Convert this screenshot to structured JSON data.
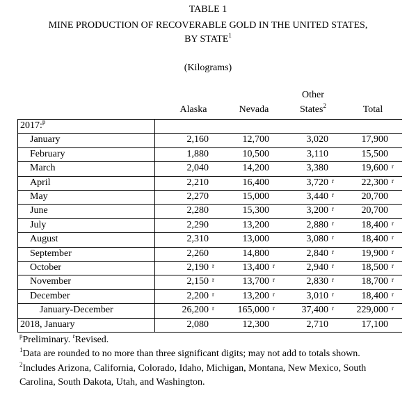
{
  "title": "TABLE 1",
  "subtitle": {
    "text": "MINE PRODUCTION OF RECOVERABLE GOLD IN THE UNITED STATES,",
    "line2": "BY STATE",
    "note": "1"
  },
  "units": "(Kilograms)",
  "table": {
    "columns": [
      {
        "text": "Alaska"
      },
      {
        "text": "Nevada"
      },
      {
        "top": "Other",
        "text": "States",
        "note": "2"
      },
      {
        "text": "Total"
      }
    ],
    "rows": [
      {
        "label": "2017:",
        "note": "p",
        "cells": []
      },
      {
        "label": "January",
        "cells": [
          {
            "text": "2,160"
          },
          {
            "text": "12,700"
          },
          {
            "text": "3,020"
          },
          {
            "text": "17,900"
          }
        ]
      },
      {
        "label": "February",
        "cells": [
          {
            "text": "1,880"
          },
          {
            "text": "10,500"
          },
          {
            "text": "3,110"
          },
          {
            "text": "15,500"
          }
        ]
      },
      {
        "label": "March",
        "cells": [
          {
            "text": "2,040"
          },
          {
            "text": "14,200"
          },
          {
            "text": "3,380"
          },
          {
            "text": "19,600",
            "note": "r"
          }
        ]
      },
      {
        "label": "April",
        "cells": [
          {
            "text": "2,210"
          },
          {
            "text": "16,400"
          },
          {
            "text": "3,720",
            "note": "r"
          },
          {
            "text": "22,300",
            "note": "r"
          }
        ]
      },
      {
        "label": "May",
        "cells": [
          {
            "text": "2,270"
          },
          {
            "text": "15,000"
          },
          {
            "text": "3,440",
            "note": "r"
          },
          {
            "text": "20,700"
          }
        ]
      },
      {
        "label": "June",
        "cells": [
          {
            "text": "2,280"
          },
          {
            "text": "15,300"
          },
          {
            "text": "3,200",
            "note": "r"
          },
          {
            "text": "20,700"
          }
        ]
      },
      {
        "label": "July",
        "cells": [
          {
            "text": "2,290"
          },
          {
            "text": "13,200"
          },
          {
            "text": "2,880",
            "note": "r"
          },
          {
            "text": "18,400",
            "note": "r"
          }
        ]
      },
      {
        "label": "August",
        "cells": [
          {
            "text": "2,310"
          },
          {
            "text": "13,000"
          },
          {
            "text": "3,080",
            "note": "r"
          },
          {
            "text": "18,400",
            "note": "r"
          }
        ]
      },
      {
        "label": "September",
        "cells": [
          {
            "text": "2,260"
          },
          {
            "text": "14,800"
          },
          {
            "text": "2,840",
            "note": "r"
          },
          {
            "text": "19,900",
            "note": "r"
          }
        ]
      },
      {
        "label": "October",
        "cells": [
          {
            "text": "2,190",
            "note": "r"
          },
          {
            "text": "13,400",
            "note": "r"
          },
          {
            "text": "2,940",
            "note": "r"
          },
          {
            "text": "18,500",
            "note": "r"
          }
        ]
      },
      {
        "label": "November",
        "cells": [
          {
            "text": "2,150",
            "note": "r"
          },
          {
            "text": "13,700",
            "note": "r"
          },
          {
            "text": "2,830",
            "note": "r"
          },
          {
            "text": "18,700",
            "note": "r"
          }
        ]
      },
      {
        "label": "December",
        "cells": [
          {
            "text": "2,200",
            "note": "r"
          },
          {
            "text": "13,200",
            "note": "r"
          },
          {
            "text": "3,010",
            "note": "r"
          },
          {
            "text": "18,400",
            "note": "r"
          }
        ]
      },
      {
        "label": "January-December",
        "cells": [
          {
            "text": "26,200",
            "note": "r"
          },
          {
            "text": "165,000",
            "note": "r"
          },
          {
            "text": "37,400",
            "note": "r"
          },
          {
            "text": "229,000",
            "note": "r"
          }
        ]
      },
      {
        "label": "2018, January",
        "cells": [
          {
            "text": "2,080"
          },
          {
            "text": "12,300"
          },
          {
            "text": "2,710"
          },
          {
            "text": "17,100"
          }
        ]
      }
    ]
  },
  "footnotes": [
    {
      "parts": [
        {
          "sup": "p",
          "text": "Preliminary. "
        },
        {
          "sup": "r",
          "text": "Revised."
        }
      ]
    },
    {
      "parts": [
        {
          "sup": "1",
          "text": "Data are rounded to no more than three significant digits; may not add to totals shown."
        }
      ]
    },
    {
      "parts": [
        {
          "sup": "2",
          "text": "Includes Arizona, California, Colorado, Idaho, Michigan, Montana, New Mexico, South"
        }
      ],
      "continued": "Carolina, South Dakota, Utah, and Washington."
    }
  ]
}
